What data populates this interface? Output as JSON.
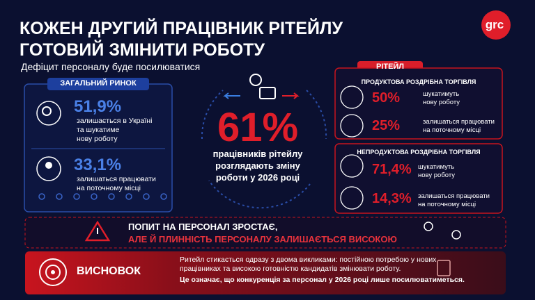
{
  "header": {
    "title": [
      "КОЖЕН ДРУГИЙ ПРАЦІВНИК  РІТЕЙЛУ",
      "ГОТОВИЙ ЗМІНИТИ РОБОТУ"
    ],
    "subtitle": "Дефіцит персоналу буде посилюватися",
    "logo": "grc"
  },
  "general_market": {
    "title": "ЗАГАЛЬНИЙ РИНОК",
    "items": [
      {
        "value": "51,9%",
        "text": [
          "залишається в Україні",
          "та шукатиме",
          "нову роботу"
        ]
      },
      {
        "value": "33,1%",
        "text": [
          "залишаться працювати",
          "на поточному місці"
        ]
      }
    ]
  },
  "center": {
    "value": "61%",
    "text": [
      "працівників рітейлу",
      "розглядають зміну",
      "роботи у 2026 році"
    ]
  },
  "retail": {
    "title": "РІТЕЙЛ",
    "groups": [
      {
        "title": "ПРОДУКТОВА РОЗДРІБНА ТОРГІВЛЯ",
        "items": [
          {
            "value": "50%",
            "text": [
              "шукатимуть",
              "нову роботу"
            ]
          },
          {
            "value": "25%",
            "text": [
              "залишаться працювати",
              "на поточному місці"
            ]
          }
        ]
      },
      {
        "title": "НЕПРОДУКТОВА РОЗДРІБНА ТОРГІВЛЯ",
        "items": [
          {
            "value": "71,4%",
            "text": [
              "шукатимуть",
              "нову роботу"
            ]
          },
          {
            "value": "14,3%",
            "text": [
              "залишаться працювати",
              "на поточному місці"
            ]
          }
        ]
      }
    ]
  },
  "warning": {
    "line1": "ПОПИТ НА ПЕРСОНАЛ ЗРОСТАЄ,",
    "line2": "АЛЕ Й ПЛИННІСТЬ ПЕРСОНАЛУ ЗАЛИШАЄТЬСЯ ВИСОКОЮ"
  },
  "conclusion": {
    "title": "ВИСНОВОК",
    "text": [
      "Ритейл стикається одразу з двома викликами: постійною потребою у нових",
      "працівниках та високою готовністю кандидатів змінювати роботу."
    ],
    "emphasis": "Це означає, що конкуренція  за персонал у 2026 році лише посилюватиметься."
  }
}
